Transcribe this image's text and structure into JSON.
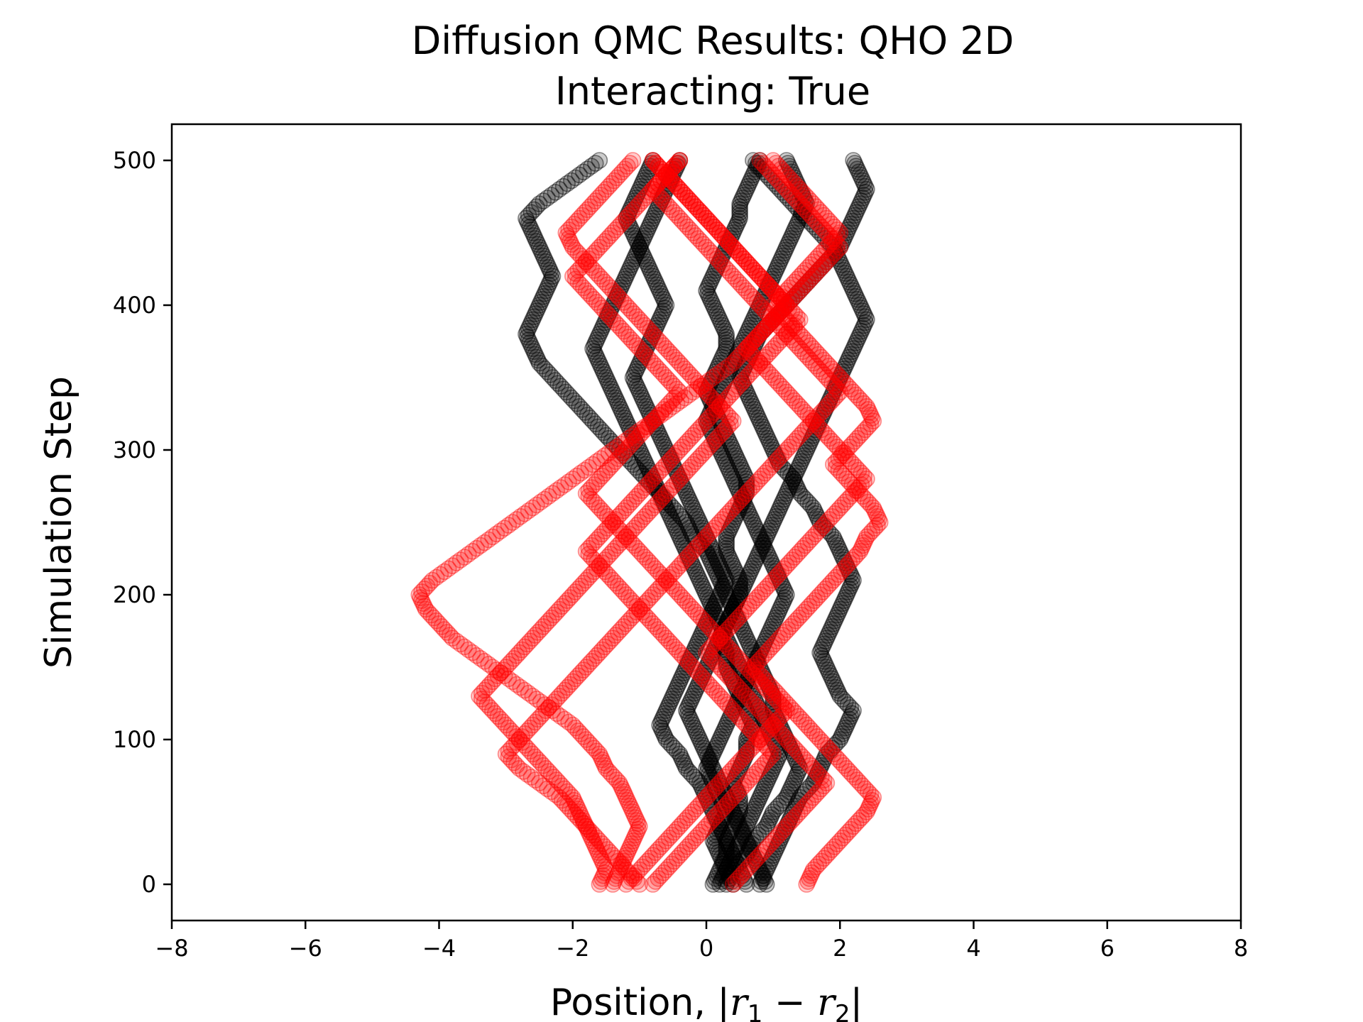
{
  "chart_data": {
    "type": "scatter",
    "title": "Diffusion QMC Results: QHO 2D",
    "subtitle": "Interacting: True",
    "xlabel": "Position, |r1 − r2|",
    "xlabel_parts": {
      "prefix": "Position, |",
      "var1": "r",
      "sub1": "1",
      "minus": " − ",
      "var2": "r",
      "sub2": "2",
      "suffix": "|"
    },
    "ylabel": "Simulation Step",
    "xlim": [
      -8,
      8
    ],
    "ylim": [
      -25,
      525
    ],
    "xticks": [
      -8,
      -6,
      -4,
      -2,
      0,
      2,
      4,
      6,
      8
    ],
    "xtick_labels": [
      "−8",
      "−6",
      "−4",
      "−2",
      "0",
      "2",
      "4",
      "6",
      "8"
    ],
    "yticks": [
      0,
      100,
      200,
      300,
      400,
      500
    ],
    "ytick_labels": [
      "0",
      "100",
      "200",
      "300",
      "400",
      "500"
    ],
    "grid": false,
    "legend": "none",
    "marker": "hollow-circle-semitransparent",
    "series": [
      {
        "color": "#000000",
        "trajectories": [
          {
            "start": 0,
            "points": [
              0.1,
              0.2,
              0.3,
              0.3,
              0.4,
              0.5,
              0.5,
              0.4,
              0.5,
              0.6,
              0.6,
              0.7,
              0.6,
              0.5,
              0.4,
              0.3,
              0.3,
              0.2,
              0.3,
              0.4,
              0.5,
              0.5,
              0.4,
              0.3,
              0.3,
              0.4,
              0.5,
              0.6,
              0.6,
              0.5,
              0.4,
              0.3,
              0.2,
              0.1,
              0.0,
              0.1,
              0.2,
              0.3,
              0.3,
              0.2,
              0.1,
              0.0,
              0.1,
              0.2,
              0.3,
              0.4,
              0.5,
              0.5,
              0.6,
              0.7,
              0.8
            ]
          },
          {
            "start": 0,
            "points": [
              0.8,
              0.9,
              1.0,
              1.1,
              1.2,
              1.3,
              1.4,
              1.6,
              1.7,
              1.8,
              2.0,
              2.1,
              2.2,
              2.0,
              1.9,
              1.8,
              1.7,
              1.8,
              1.9,
              2.0,
              2.1,
              2.2,
              2.1,
              2.0,
              1.9,
              1.7,
              1.6,
              1.4,
              1.3,
              1.1,
              1.0,
              0.9,
              0.8,
              0.7,
              0.6,
              0.5,
              0.6,
              0.7,
              0.8,
              1.0,
              1.2,
              1.4,
              1.6,
              1.8,
              2.0,
              2.1,
              2.2,
              2.3,
              2.4,
              2.3,
              2.2
            ]
          },
          {
            "start": 0,
            "points": [
              0.3,
              0.4,
              0.6,
              0.7,
              0.9,
              1.0,
              1.2,
              1.3,
              1.4,
              1.3,
              1.2,
              1.1,
              1.0,
              1.0,
              0.9,
              0.8,
              0.7,
              0.6,
              0.5,
              0.4,
              0.3,
              0.2,
              0.1,
              0.0,
              -0.2,
              -0.3,
              -0.5,
              -0.7,
              -0.9,
              -1.1,
              -1.3,
              -1.5,
              -1.7,
              -1.9,
              -2.1,
              -2.3,
              -2.5,
              -2.6,
              -2.7,
              -2.6,
              -2.5,
              -2.4,
              -2.3,
              -2.4,
              -2.5,
              -2.6,
              -2.7,
              -2.5,
              -2.2,
              -1.9,
              -1.6
            ]
          },
          {
            "start": 0,
            "points": [
              0.6,
              0.5,
              0.4,
              0.3,
              0.2,
              0.1,
              0.0,
              -0.1,
              -0.3,
              -0.4,
              -0.6,
              -0.7,
              -0.6,
              -0.5,
              -0.4,
              -0.3,
              -0.2,
              -0.1,
              0.0,
              0.1,
              0.2,
              0.3,
              0.2,
              0.1,
              0.0,
              -0.1,
              -0.2,
              -0.3,
              -0.4,
              -0.5,
              -0.6,
              -0.7,
              -0.8,
              -0.9,
              -1.0,
              -1.1,
              -1.0,
              -0.9,
              -0.8,
              -0.7,
              -0.6,
              -0.7,
              -0.8,
              -0.9,
              -1.0,
              -1.1,
              -1.2,
              -1.1,
              -1.0,
              -0.9,
              -0.8
            ]
          },
          {
            "start": 0,
            "points": [
              0.4,
              0.3,
              0.2,
              0.1,
              0.2,
              0.3,
              0.2,
              0.1,
              0.0,
              0.1,
              0.2,
              0.3,
              0.4,
              0.5,
              0.6,
              0.7,
              0.8,
              0.9,
              1.0,
              1.1,
              1.2,
              1.1,
              1.0,
              0.9,
              0.8,
              0.7,
              0.6,
              0.5,
              0.4,
              0.3,
              0.2,
              0.1,
              0.0,
              0.1,
              0.2,
              0.3,
              0.4,
              0.5,
              0.6,
              0.7,
              0.8,
              0.9,
              1.0,
              1.1,
              1.2,
              1.3,
              1.4,
              1.5,
              1.4,
              1.3,
              1.2
            ]
          },
          {
            "start": 0,
            "points": [
              0.9,
              0.8,
              0.7,
              0.6,
              0.5,
              0.4,
              0.3,
              0.2,
              0.1,
              0.0,
              -0.1,
              -0.2,
              -0.3,
              -0.2,
              -0.1,
              0.0,
              0.1,
              0.2,
              0.3,
              0.4,
              0.5,
              0.6,
              0.7,
              0.8,
              0.9,
              1.0,
              1.1,
              1.2,
              1.3,
              1.4,
              1.5,
              1.6,
              1.7,
              1.8,
              1.9,
              2.0,
              2.1,
              2.2,
              2.3,
              2.4,
              2.3,
              2.2,
              2.1,
              2.0,
              1.9,
              1.7,
              1.5,
              1.3,
              1.1,
              0.9,
              0.7
            ]
          },
          {
            "start": 0,
            "points": [
              0.2,
              0.3,
              0.4,
              0.5,
              0.6,
              0.7,
              0.8,
              0.9,
              1.0,
              1.1,
              1.0,
              0.9,
              0.8,
              0.7,
              0.6,
              0.5,
              0.4,
              0.3,
              0.2,
              0.1,
              0.0,
              -0.1,
              -0.2,
              -0.3,
              -0.4,
              -0.5,
              -0.6,
              -0.7,
              -0.8,
              -0.9,
              -1.0,
              -1.1,
              -1.2,
              -1.3,
              -1.4,
              -1.5,
              -1.6,
              -1.7,
              -1.6,
              -1.5,
              -1.4,
              -1.3,
              -1.2,
              -1.1,
              -1.0,
              -0.9,
              -0.8,
              -0.7,
              -0.6,
              -0.5,
              -0.4
            ]
          }
        ]
      },
      {
        "color": "#ff0000",
        "trajectories": [
          {
            "start": 0,
            "points": [
              -1.4,
              -1.3,
              -1.2,
              -1.1,
              -1.0,
              -1.1,
              -1.2,
              -1.3,
              -1.5,
              -1.6,
              -1.8,
              -2.0,
              -2.3,
              -2.6,
              -2.9,
              -3.2,
              -3.5,
              -3.8,
              -4.0,
              -4.2,
              -4.3,
              -4.1,
              -3.8,
              -3.5,
              -3.2,
              -2.9,
              -2.6,
              -2.3,
              -2.0,
              -1.7,
              -1.4,
              -1.1,
              -0.8,
              -0.5,
              -0.2,
              0.1,
              0.4,
              0.6,
              0.8,
              1.0,
              1.2,
              1.0,
              0.8,
              0.6,
              0.4,
              0.2,
              0.0,
              -0.2,
              -0.4,
              -0.6,
              -0.8
            ]
          },
          {
            "start": 0,
            "points": [
              -1.0,
              -1.2,
              -1.4,
              -1.6,
              -1.8,
              -2.0,
              -2.2,
              -2.5,
              -2.8,
              -3.0,
              -2.8,
              -2.6,
              -2.4,
              -2.2,
              -2.0,
              -1.8,
              -1.6,
              -1.4,
              -1.2,
              -1.0,
              -1.2,
              -1.4,
              -1.6,
              -1.8,
              -1.6,
              -1.4,
              -1.2,
              -1.0,
              -0.8,
              -0.6,
              -0.4,
              -0.2,
              0.0,
              0.2,
              0.4,
              0.6,
              0.8,
              1.0,
              1.2,
              1.4,
              1.2,
              1.0,
              0.8,
              0.6,
              0.4,
              0.2,
              0.0,
              -0.2,
              -0.4,
              -0.6,
              -0.8
            ]
          },
          {
            "start": 0,
            "points": [
              -1.6,
              -1.5,
              -1.6,
              -1.7,
              -1.8,
              -1.9,
              -2.0,
              -2.2,
              -2.4,
              -2.6,
              -2.8,
              -3.0,
              -3.2,
              -3.4,
              -3.2,
              -3.0,
              -2.8,
              -2.6,
              -2.4,
              -2.2,
              -2.0,
              -1.8,
              -1.6,
              -1.4,
              -1.2,
              -1.0,
              -0.8,
              -0.6,
              -0.4,
              -0.2,
              0.0,
              0.2,
              0.4,
              0.2,
              0.0,
              -0.2,
              -0.4,
              -0.6,
              -0.8,
              -1.0,
              -1.2,
              -1.4,
              -1.6,
              -1.8,
              -2.0,
              -2.1,
              -1.9,
              -1.7,
              -1.5,
              -1.3,
              -1.1
            ]
          },
          {
            "start": 0,
            "points": [
              1.5,
              1.6,
              1.8,
              2.0,
              2.2,
              2.4,
              2.5,
              2.3,
              2.1,
              1.9,
              1.7,
              1.5,
              1.3,
              1.1,
              0.9,
              0.7,
              0.9,
              1.1,
              1.3,
              1.5,
              1.7,
              1.9,
              2.1,
              2.3,
              2.4,
              2.6,
              2.5,
              2.3,
              2.1,
              1.9,
              2.1,
              2.3,
              2.5,
              2.4,
              2.2,
              2.0,
              1.8,
              1.6,
              1.4,
              1.2,
              1.0,
              1.2,
              1.4,
              1.6,
              1.8,
              2.0,
              1.8,
              1.6,
              1.4,
              1.2,
              1.0
            ]
          },
          {
            "start": 0,
            "points": [
              -0.8,
              -0.6,
              -0.4,
              -0.2,
              0.0,
              0.2,
              0.4,
              0.6,
              0.8,
              1.0,
              0.8,
              0.6,
              0.4,
              0.2,
              0.0,
              -0.2,
              -0.4,
              -0.6,
              -0.8,
              -1.0,
              -0.8,
              -0.6,
              -0.4,
              -0.2,
              0.0,
              0.2,
              0.4,
              0.6,
              0.8,
              1.0,
              1.2,
              1.4,
              1.6,
              1.8,
              2.0,
              1.8,
              1.6,
              1.4,
              1.2,
              1.0,
              0.8,
              0.6,
              0.4,
              0.2,
              0.0,
              -0.2,
              -0.4,
              -0.6,
              -0.8,
              -0.6,
              -0.4
            ]
          },
          {
            "start": 0,
            "points": [
              -1.2,
              -1.0,
              -0.8,
              -0.6,
              -0.4,
              -0.2,
              0.0,
              0.2,
              0.4,
              0.6,
              0.8,
              1.0,
              1.2,
              1.0,
              0.8,
              0.6,
              0.4,
              0.2,
              0.0,
              -0.2,
              -0.4,
              -0.6,
              -0.8,
              -1.0,
              -1.2,
              -1.4,
              -1.6,
              -1.8,
              -1.6,
              -1.4,
              -1.2,
              -1.0,
              -0.8,
              -0.6,
              -0.4,
              -0.6,
              -0.8,
              -1.0,
              -1.2,
              -1.4,
              -1.6,
              -1.8,
              -2.0,
              -1.8,
              -1.6,
              -1.4,
              -1.2,
              -1.0,
              -0.8,
              -0.6,
              -0.4
            ]
          },
          {
            "start": 0,
            "points": [
              0.4,
              0.6,
              0.8,
              1.0,
              1.2,
              1.4,
              1.6,
              1.8,
              1.6,
              1.4,
              1.2,
              1.0,
              0.8,
              0.6,
              0.4,
              0.2,
              0.0,
              0.2,
              0.4,
              0.6,
              0.8,
              1.0,
              1.2,
              1.4,
              1.6,
              1.8,
              2.0,
              2.2,
              2.4,
              2.2,
              2.0,
              1.8,
              1.6,
              1.4,
              1.2,
              1.0,
              0.8,
              0.6,
              0.8,
              1.0,
              1.2,
              1.4,
              1.6,
              1.8,
              2.0,
              1.8,
              1.6,
              1.4,
              1.2,
              1.0,
              0.8
            ]
          }
        ]
      }
    ]
  }
}
